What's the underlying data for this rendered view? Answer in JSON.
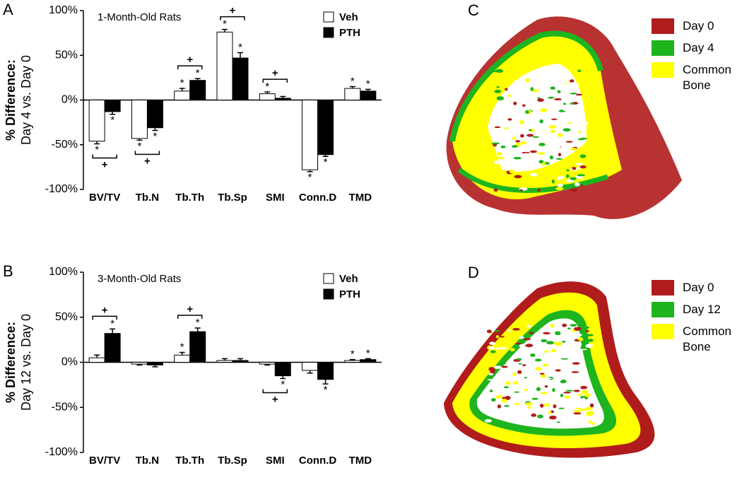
{
  "chart_data": [
    {
      "type": "bar",
      "panel": "A",
      "title": "1-Month-Old Rats",
      "ylabel": [
        "% Difference:",
        "Day 4 vs. Day 0"
      ],
      "categories": [
        "BV/TV",
        "Tb.N",
        "Tb.Th",
        "Tb.Sp",
        "SMI",
        "Conn.D",
        "TMD"
      ],
      "series": [
        {
          "name": "Veh",
          "color": "#ffffff",
          "values": [
            -46,
            -43,
            10,
            76,
            7,
            -78,
            13
          ],
          "errors": [
            3,
            2,
            3,
            3,
            2,
            2,
            2
          ],
          "stars": [
            0,
            1,
            2,
            3,
            4,
            5,
            6
          ]
        },
        {
          "name": "PTH",
          "color": "#000000",
          "values": [
            -13,
            -31,
            22,
            47,
            2,
            -61,
            10
          ],
          "errors": [
            3,
            3,
            2,
            6,
            2,
            2,
            2
          ],
          "stars": [
            0,
            1,
            2,
            3,
            5,
            6
          ]
        }
      ],
      "star_label": "*",
      "bracket_label": "+",
      "brackets": [
        0,
        1,
        2,
        3,
        4
      ],
      "ylim": [
        -100,
        100
      ],
      "yticks": [
        {
          "value": -100,
          "label": "-100%"
        },
        {
          "value": -50,
          "label": "-50%"
        },
        {
          "value": 0,
          "label": "0%"
        },
        {
          "value": 50,
          "label": "50%"
        },
        {
          "value": 100,
          "label": "100%"
        }
      ],
      "legend": "upper right"
    },
    {
      "type": "bar",
      "panel": "B",
      "title": "3-Month-Old Rats",
      "ylabel": [
        "% Difference:",
        "Day 12 vs. Day 0"
      ],
      "categories": [
        "BV/TV",
        "Tb.N",
        "Tb.Th",
        "Tb.Sp",
        "SMI",
        "Conn.D",
        "TMD"
      ],
      "series": [
        {
          "name": "Veh",
          "color": "#ffffff",
          "values": [
            5,
            -2,
            8,
            2,
            -2,
            -9,
            2
          ],
          "errors": [
            3,
            1,
            3,
            2,
            1,
            3,
            1
          ],
          "stars": [
            2,
            6
          ]
        },
        {
          "name": "PTH",
          "color": "#000000",
          "values": [
            32,
            -3,
            34,
            2,
            -15,
            -19,
            3
          ],
          "errors": [
            5,
            2,
            4,
            2,
            3,
            5,
            1
          ],
          "stars": [
            0,
            2,
            4,
            5,
            6
          ]
        }
      ],
      "star_label": "*",
      "bracket_label": "+",
      "brackets": [
        0,
        2,
        4
      ],
      "ylim": [
        -100,
        100
      ],
      "yticks": [
        {
          "value": -100,
          "label": "-100%"
        },
        {
          "value": -50,
          "label": "-50%"
        },
        {
          "value": 0,
          "label": "0%"
        },
        {
          "value": 50,
          "label": "50%"
        },
        {
          "value": 100,
          "label": "100%"
        }
      ],
      "legend": "upper right"
    }
  ],
  "images": [
    {
      "panel": "C",
      "legend": [
        {
          "label": "Day 0",
          "color": "#b01c1c"
        },
        {
          "label": "Day 4",
          "color": "#1eb41e"
        },
        {
          "label": "Common Bone",
          "color": "#ffff00"
        }
      ]
    },
    {
      "panel": "D",
      "legend": [
        {
          "label": "Day 0",
          "color": "#b01c1c"
        },
        {
          "label": "Day 12",
          "color": "#1eb41e"
        },
        {
          "label": "Common Bone",
          "color": "#ffff00"
        }
      ]
    }
  ]
}
